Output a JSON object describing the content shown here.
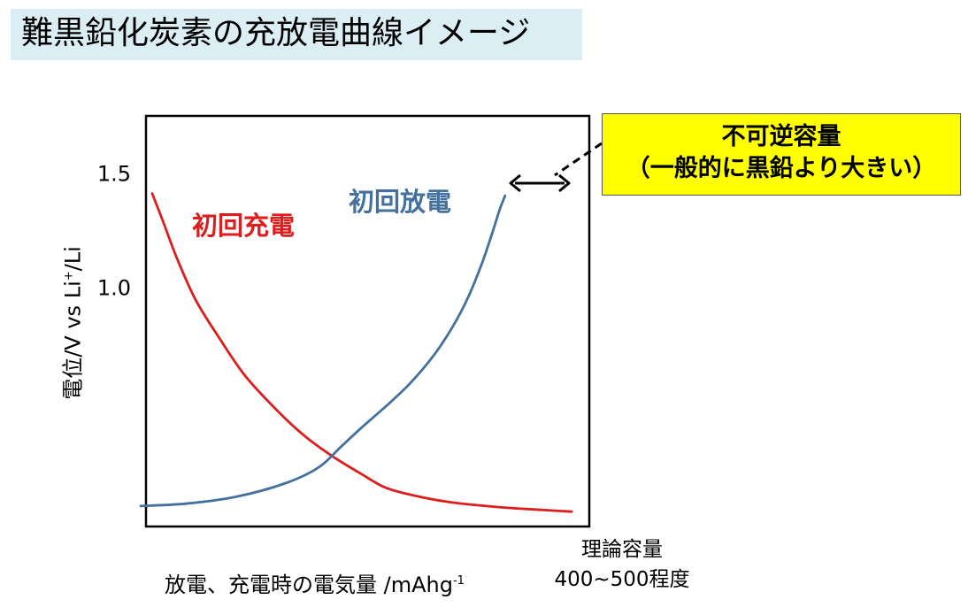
{
  "slide_title": "難黒鉛化炭素の充放電曲線イメージ",
  "callout": {
    "line1": "不可逆容量",
    "line2": "（一般的に黒鉛より大きい）"
  },
  "x_note": {
    "line1": "理論容量",
    "line2": "400~500程度"
  },
  "colors": {
    "title_bg": "#dbeef4",
    "charge": "#dc1e1e",
    "discharge": "#44709e",
    "callout_bg": "#ffff00"
  },
  "chart_data": {
    "type": "line",
    "title": "",
    "ylabel": "電位/V vs Li+/Li",
    "ylabel_parts": {
      "main": "電位/V vs Li",
      "sup": "+",
      "tail": "/Li"
    },
    "xlabel": "放電、充電時の電気量 /mAhg-1",
    "xlabel_parts": {
      "main": "放電、充電時の電気量 /mAhg",
      "sup": "-1"
    },
    "ylim": [
      -0.05,
      1.75
    ],
    "xlim": [
      0,
      100
    ],
    "yticks": [
      {
        "value": 1.0,
        "label": "1.0"
      },
      {
        "value": 1.5,
        "label": "1.5"
      }
    ],
    "grid": false,
    "series": [
      {
        "name": "初回充電",
        "color": "#dc1e1e",
        "x": [
          1.4,
          3.8,
          7.1,
          11.3,
          16.4,
          22.4,
          29.5,
          35.6,
          41.9,
          48.6,
          54.1,
          60.7,
          69.2,
          79.6,
          89.1,
          96.0
        ],
        "y": [
          1.41,
          1.29,
          1.12,
          0.94,
          0.78,
          0.61,
          0.46,
          0.35,
          0.26,
          0.18,
          0.12,
          0.085,
          0.055,
          0.035,
          0.023,
          0.015
        ]
      },
      {
        "name": "初回放電",
        "color": "#44709e",
        "x": [
          -1.2,
          8.9,
          20.2,
          31.5,
          39.0,
          44.0,
          49.0,
          54.3,
          59.7,
          64.9,
          69.3,
          72.8,
          75.9,
          78.0,
          79.8,
          81.0
        ],
        "y": [
          0.04,
          0.05,
          0.08,
          0.14,
          0.21,
          0.3,
          0.39,
          0.48,
          0.58,
          0.7,
          0.83,
          0.96,
          1.11,
          1.23,
          1.34,
          1.4
        ]
      }
    ],
    "annotations": [
      {
        "text": "初回充電",
        "color": "#dc1e1e"
      },
      {
        "text": "初回放電",
        "color": "#44709e"
      }
    ]
  }
}
